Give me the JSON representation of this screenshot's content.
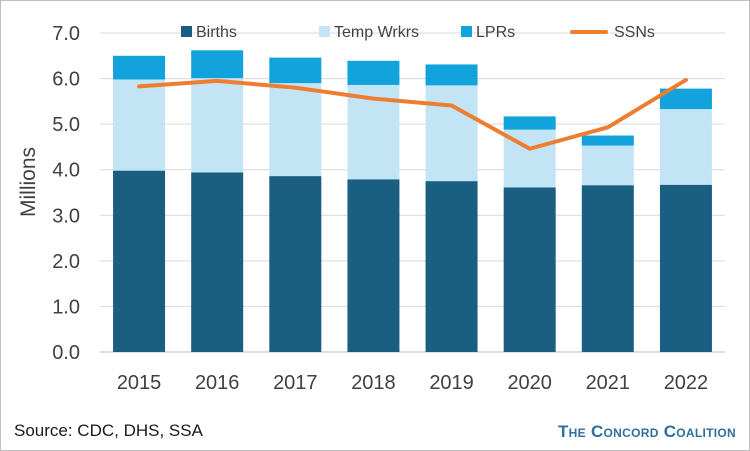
{
  "chart_data": {
    "type": "bar",
    "stacked": true,
    "categories": [
      "2015",
      "2016",
      "2017",
      "2018",
      "2019",
      "2020",
      "2021",
      "2022"
    ],
    "series": [
      {
        "name": "Births",
        "kind": "bar",
        "color": "#1a5e82",
        "values": [
          3.98,
          3.94,
          3.86,
          3.79,
          3.75,
          3.61,
          3.66,
          3.67
        ]
      },
      {
        "name": "Temp Wrkrs",
        "kind": "bar",
        "color": "#c3e4f5",
        "values": [
          2.0,
          2.07,
          2.04,
          2.07,
          2.1,
          1.27,
          0.87,
          1.66
        ]
      },
      {
        "name": "LPRs",
        "kind": "bar",
        "color": "#12a3dc",
        "values": [
          0.52,
          0.61,
          0.56,
          0.53,
          0.46,
          0.29,
          0.22,
          0.45
        ]
      },
      {
        "name": "SSNs",
        "kind": "line",
        "color": "#ed7d31",
        "values": [
          5.83,
          5.95,
          5.8,
          5.56,
          5.41,
          4.46,
          4.93,
          5.97
        ]
      }
    ],
    "ylabel": "Millions",
    "ylim": [
      0,
      7
    ],
    "yticks": [
      "0.0",
      "1.0",
      "2.0",
      "3.0",
      "4.0",
      "5.0",
      "6.0",
      "7.0"
    ],
    "grid": true,
    "legend_position": "top"
  },
  "footer": {
    "source": "Source: CDC, DHS, SSA",
    "brand": "The Concord Coalition"
  }
}
